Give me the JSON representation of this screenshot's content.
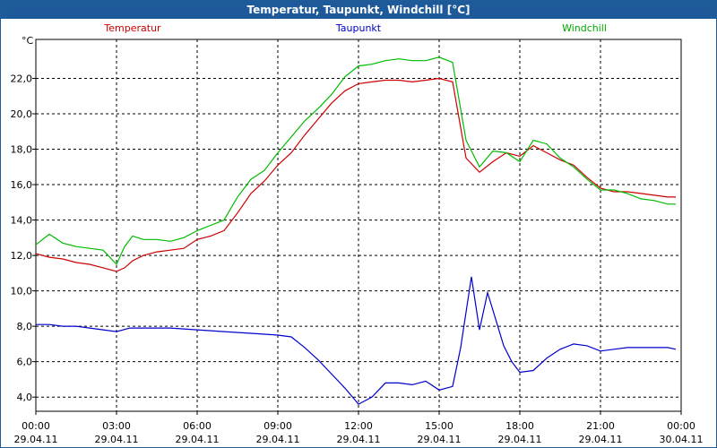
{
  "window": {
    "title": "Temperatur, Taupunkt, Windchill [°C]"
  },
  "chart_data": {
    "type": "line",
    "title": "Temperatur, Taupunkt, Windchill [°C]",
    "ylabel": "°C",
    "ylim": [
      3.2,
      24.2
    ],
    "xlim": [
      0,
      24
    ],
    "yticks": [
      4,
      6,
      8,
      10,
      12,
      14,
      16,
      18,
      20,
      22
    ],
    "yticklabels": [
      "4,0",
      "6,0",
      "8,0",
      "10,0",
      "12,0",
      "14,0",
      "16,0",
      "18,0",
      "20,0",
      "22,0"
    ],
    "xticks": [
      0,
      3,
      6,
      9,
      12,
      15,
      18,
      21,
      24
    ],
    "xticklabels_time": [
      "00:00",
      "03:00",
      "06:00",
      "09:00",
      "12:00",
      "15:00",
      "18:00",
      "21:00",
      "00:00"
    ],
    "xticklabels_date": [
      "29.04.11",
      "29.04.11",
      "29.04.11",
      "29.04.11",
      "29.04.11",
      "29.04.11",
      "29.04.11",
      "29.04.11",
      "30.04.11"
    ],
    "grid": true,
    "colors": {
      "Temperatur": "#cc0000",
      "Taupunkt": "#0000cc",
      "Windchill": "#00bb00"
    },
    "series": [
      {
        "name": "Temperatur",
        "x": [
          0,
          0.5,
          1,
          1.5,
          2,
          2.5,
          3,
          3.3,
          3.6,
          4,
          4.5,
          5,
          5.5,
          6,
          6.5,
          7,
          7.5,
          8,
          8.5,
          9,
          9.5,
          10,
          10.5,
          11,
          11.5,
          12,
          12.5,
          13,
          13.5,
          14,
          14.5,
          15,
          15.5,
          16,
          16.5,
          17,
          17.5,
          18,
          18.5,
          19,
          19.5,
          20,
          20.5,
          21,
          21.5,
          22,
          22.5,
          23,
          23.5,
          23.8
        ],
        "values": [
          12.1,
          11.9,
          11.8,
          11.6,
          11.5,
          11.3,
          11.1,
          11.3,
          11.7,
          12.0,
          12.2,
          12.3,
          12.4,
          12.9,
          13.1,
          13.4,
          14.4,
          15.5,
          16.2,
          17.1,
          17.8,
          18.8,
          19.7,
          20.6,
          21.3,
          21.7,
          21.8,
          21.9,
          21.9,
          21.8,
          21.9,
          22.0,
          21.8,
          17.5,
          16.7,
          17.3,
          17.8,
          17.6,
          18.2,
          17.8,
          17.4,
          17.1,
          16.4,
          15.8,
          15.6,
          15.6,
          15.5,
          15.4,
          15.3,
          15.3
        ]
      },
      {
        "name": "Taupunkt",
        "x": [
          0,
          0.5,
          1,
          1.5,
          2,
          2.5,
          3,
          3.5,
          4,
          5,
          6,
          7,
          8,
          9,
          9.5,
          10,
          10.5,
          11,
          11.5,
          12,
          12.5,
          13,
          13.5,
          14,
          14.5,
          15,
          15.5,
          15.8,
          16.2,
          16.5,
          16.8,
          17.1,
          17.4,
          17.7,
          18,
          18.5,
          19,
          19.5,
          20,
          20.5,
          21,
          21.5,
          22,
          22.5,
          23,
          23.5,
          23.8
        ],
        "values": [
          8.1,
          8.1,
          8.0,
          8.0,
          7.9,
          7.8,
          7.7,
          7.9,
          7.9,
          7.9,
          7.8,
          7.7,
          7.6,
          7.5,
          7.4,
          6.8,
          6.1,
          5.3,
          4.5,
          3.6,
          4.0,
          4.8,
          4.8,
          4.7,
          4.9,
          4.4,
          4.6,
          6.8,
          10.8,
          7.8,
          9.9,
          8.4,
          6.9,
          6.0,
          5.4,
          5.5,
          6.2,
          6.7,
          7.0,
          6.9,
          6.6,
          6.7,
          6.8,
          6.8,
          6.8,
          6.8,
          6.7
        ]
      },
      {
        "name": "Windchill",
        "x": [
          0,
          0.5,
          1,
          1.5,
          2,
          2.5,
          3,
          3.3,
          3.6,
          4,
          4.5,
          5,
          5.5,
          6,
          6.5,
          7,
          7.5,
          8,
          8.5,
          9,
          9.5,
          10,
          10.5,
          11,
          11.5,
          12,
          12.5,
          13,
          13.5,
          14,
          14.5,
          15,
          15.5,
          16,
          16.5,
          17,
          17.5,
          18,
          18.5,
          19,
          19.5,
          20,
          20.5,
          21,
          21.5,
          22,
          22.5,
          23,
          23.5,
          23.8
        ],
        "values": [
          12.6,
          13.2,
          12.7,
          12.5,
          12.4,
          12.3,
          11.5,
          12.5,
          13.1,
          12.9,
          12.9,
          12.8,
          13.0,
          13.4,
          13.7,
          14.0,
          15.3,
          16.3,
          16.8,
          17.8,
          18.7,
          19.6,
          20.3,
          21.1,
          22.1,
          22.7,
          22.8,
          23.0,
          23.1,
          23.0,
          23.0,
          23.2,
          22.9,
          18.5,
          17.0,
          17.9,
          17.8,
          17.3,
          18.5,
          18.3,
          17.5,
          17.0,
          16.3,
          15.7,
          15.7,
          15.5,
          15.2,
          15.1,
          14.9,
          14.9
        ]
      }
    ]
  }
}
